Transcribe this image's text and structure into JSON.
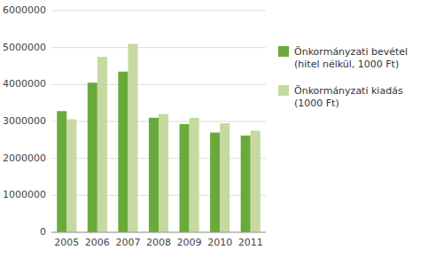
{
  "chart_data": {
    "type": "bar",
    "categories": [
      "2005",
      "2006",
      "2007",
      "2008",
      "2009",
      "2010",
      "2011"
    ],
    "series": [
      {
        "name": "Önkormányzati bevétel\n(hitel nélkül, 1000 Ft)",
        "color": "#6aaa3a",
        "values": [
          3280000,
          4050000,
          4350000,
          3100000,
          2930000,
          2700000,
          2620000
        ]
      },
      {
        "name": "Önkormányzati kiadás\n(1000 Ft)",
        "color": "#c5d9a0",
        "values": [
          3060000,
          4750000,
          5100000,
          3200000,
          3100000,
          2950000,
          2750000
        ]
      }
    ],
    "ylim": [
      0,
      6000000
    ],
    "yticks": [
      0,
      1000000,
      2000000,
      3000000,
      4000000,
      5000000,
      6000000
    ],
    "grid": true,
    "legend": "right"
  }
}
